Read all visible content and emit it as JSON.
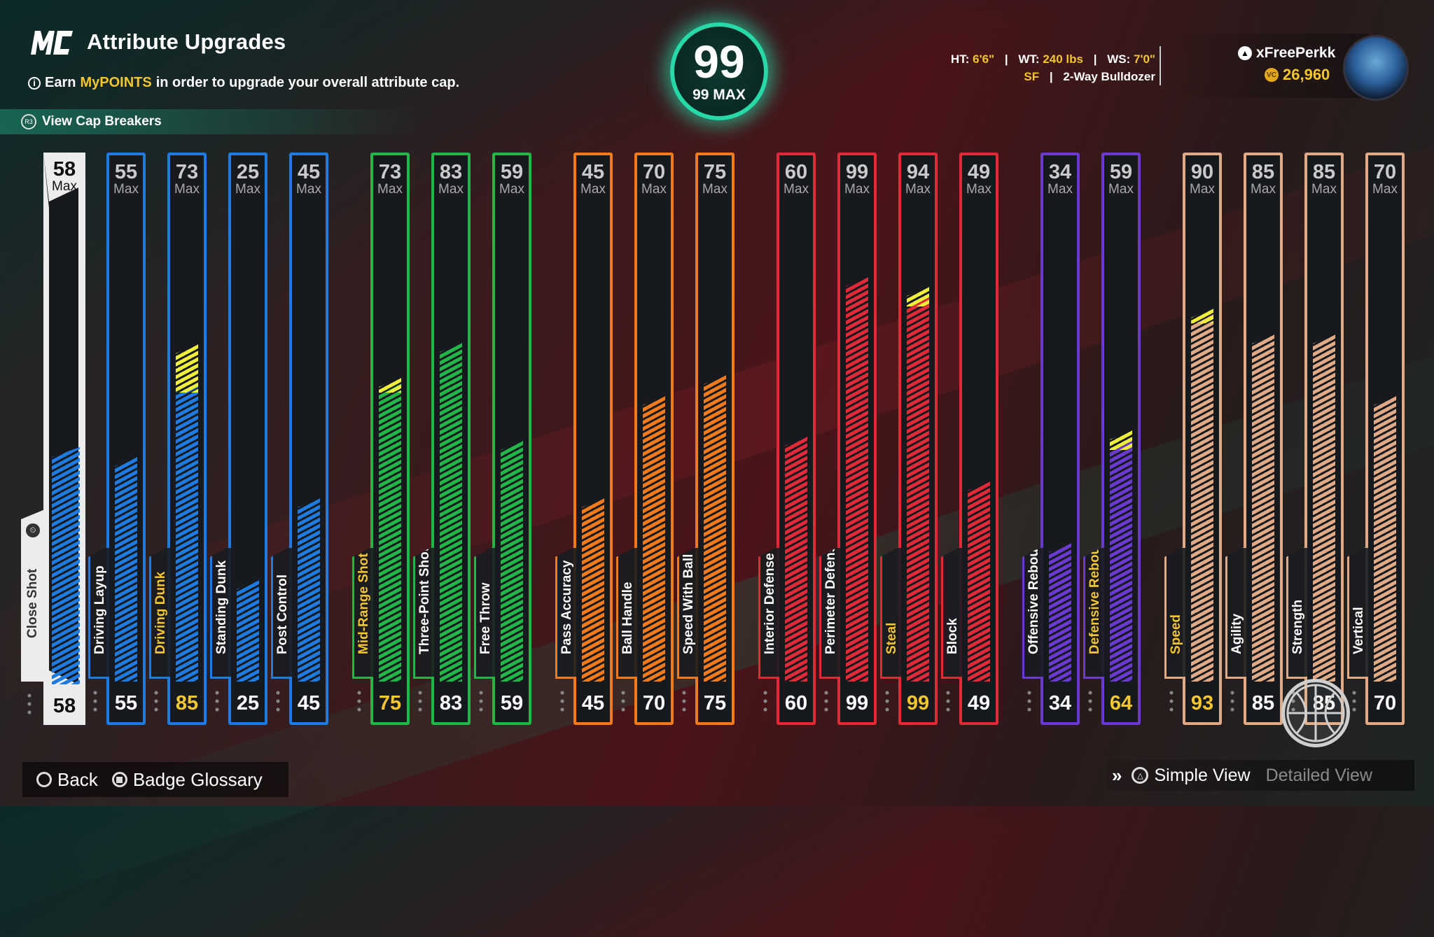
{
  "header": {
    "title": "Attribute Upgrades",
    "subtitle_pre": "Earn",
    "subtitle_highlight": "MyPOINTS",
    "subtitle_post": "in order to upgrade your overall attribute cap.",
    "cap_breakers_label": "View Cap Breakers",
    "cap_breakers_button": "R3"
  },
  "overall": {
    "value": "99",
    "max_label": "99 MAX"
  },
  "player": {
    "ht_label": "HT:",
    "ht_value": "6'6\"",
    "wt_label": "WT:",
    "wt_value": "240 lbs",
    "ws_label": "WS:",
    "ws_value": "7'0\"",
    "position": "SF",
    "build": "2-Way Bulldozer",
    "gamertag": "xFreePerkk",
    "vc": "26,960"
  },
  "colors": {
    "finishing": "#1f7be0",
    "shooting": "#22b548",
    "playmaking": "#f07a1c",
    "defense": "#e02a37",
    "rebounding": "#6a3ad0",
    "physical": "#e0aa86",
    "upgrade": "#f0ee3c",
    "highlight": "#f2c531"
  },
  "max_label": "Max",
  "attributes": [
    {
      "name": "Close Shot",
      "max": "58",
      "current": "58",
      "fill": 58,
      "upgrade": 0,
      "group": "finishing",
      "selected": true,
      "yellow": false
    },
    {
      "name": "Driving Layup",
      "max": "55",
      "current": "55",
      "fill": 55,
      "upgrade": 0,
      "group": "finishing",
      "selected": false,
      "yellow": false
    },
    {
      "name": "Driving Dunk",
      "max": "73",
      "current": "85",
      "fill": 73,
      "upgrade": 12,
      "group": "finishing",
      "selected": false,
      "yellow": true
    },
    {
      "name": "Standing Dunk",
      "max": "25",
      "current": "25",
      "fill": 25,
      "upgrade": 0,
      "group": "finishing",
      "selected": false,
      "yellow": false
    },
    {
      "name": "Post Control",
      "max": "45",
      "current": "45",
      "fill": 45,
      "upgrade": 0,
      "group": "finishing",
      "selected": false,
      "yellow": false
    },
    {
      "name": "Mid-Range Shot",
      "max": "73",
      "current": "75",
      "fill": 73,
      "upgrade": 2,
      "group": "shooting",
      "selected": false,
      "yellow": true
    },
    {
      "name": "Three-Point Shot",
      "max": "83",
      "current": "83",
      "fill": 83,
      "upgrade": 0,
      "group": "shooting",
      "selected": false,
      "yellow": false
    },
    {
      "name": "Free Throw",
      "max": "59",
      "current": "59",
      "fill": 59,
      "upgrade": 0,
      "group": "shooting",
      "selected": false,
      "yellow": false
    },
    {
      "name": "Pass Accuracy",
      "max": "45",
      "current": "45",
      "fill": 45,
      "upgrade": 0,
      "group": "playmaking",
      "selected": false,
      "yellow": false
    },
    {
      "name": "Ball Handle",
      "max": "70",
      "current": "70",
      "fill": 70,
      "upgrade": 0,
      "group": "playmaking",
      "selected": false,
      "yellow": false
    },
    {
      "name": "Speed With Ball",
      "max": "75",
      "current": "75",
      "fill": 75,
      "upgrade": 0,
      "group": "playmaking",
      "selected": false,
      "yellow": false
    },
    {
      "name": "Interior Defense",
      "max": "60",
      "current": "60",
      "fill": 60,
      "upgrade": 0,
      "group": "defense",
      "selected": false,
      "yellow": false
    },
    {
      "name": "Perimeter Defense",
      "max": "99",
      "current": "99",
      "fill": 99,
      "upgrade": 0,
      "group": "defense",
      "selected": false,
      "yellow": false
    },
    {
      "name": "Steal",
      "max": "94",
      "current": "99",
      "fill": 94,
      "upgrade": 5,
      "group": "defense",
      "selected": false,
      "yellow": true
    },
    {
      "name": "Block",
      "max": "49",
      "current": "49",
      "fill": 49,
      "upgrade": 0,
      "group": "defense",
      "selected": false,
      "yellow": false
    },
    {
      "name": "Offensive Rebound",
      "max": "34",
      "current": "34",
      "fill": 34,
      "upgrade": 0,
      "group": "rebounding",
      "selected": false,
      "yellow": false
    },
    {
      "name": "Defensive Rebound",
      "max": "59",
      "current": "64",
      "fill": 59,
      "upgrade": 5,
      "group": "rebounding",
      "selected": false,
      "yellow": true
    },
    {
      "name": "Speed",
      "max": "90",
      "current": "93",
      "fill": 90,
      "upgrade": 3,
      "group": "physical",
      "selected": false,
      "yellow": true
    },
    {
      "name": "Agility",
      "max": "85",
      "current": "85",
      "fill": 85,
      "upgrade": 0,
      "group": "physical",
      "selected": false,
      "yellow": false
    },
    {
      "name": "Strength",
      "max": "85",
      "current": "85",
      "fill": 85,
      "upgrade": 0,
      "group": "physical",
      "selected": false,
      "yellow": false
    },
    {
      "name": "Vertical",
      "max": "70",
      "current": "70",
      "fill": 70,
      "upgrade": 0,
      "group": "physical",
      "selected": false,
      "yellow": false
    }
  ],
  "footer": {
    "back_label": "Back",
    "glossary_label": "Badge Glossary",
    "simple_view_label": "Simple View",
    "detailed_view_label": "Detailed View"
  }
}
